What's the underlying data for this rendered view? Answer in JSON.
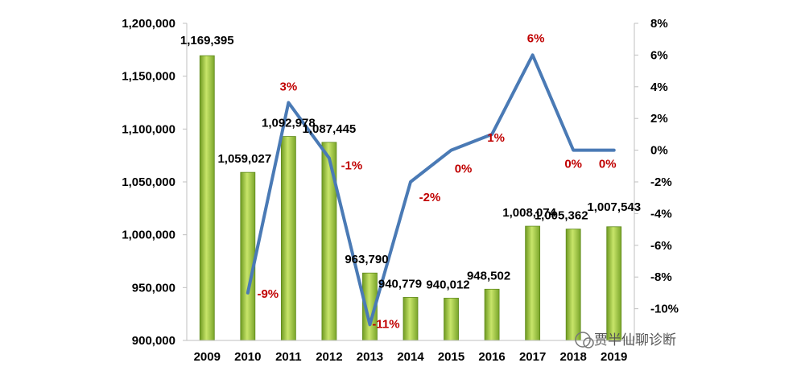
{
  "chart_data": {
    "type": "bar",
    "categories": [
      "2009",
      "2010",
      "2011",
      "2012",
      "2013",
      "2014",
      "2015",
      "2016",
      "2017",
      "2018",
      "2019"
    ],
    "series": [
      {
        "type": "bar",
        "axis": "left",
        "values": [
          1169395,
          1059027,
          1092978,
          1087445,
          963790,
          940779,
          940012,
          948502,
          1008074,
          1005362,
          1007543
        ],
        "labels": [
          "1,169,395",
          "1,059,027",
          "1,092,978",
          "1,087,445",
          "963,790",
          "940,779",
          "940,012",
          "948,502",
          "1,008,074",
          "1,005,362",
          "1,007,543"
        ],
        "color": "#8db83a"
      },
      {
        "type": "line",
        "axis": "right",
        "values": [
          null,
          -9,
          3,
          -0.5,
          -11,
          -2,
          0,
          1,
          6,
          0,
          0
        ],
        "labels": [
          null,
          "-9%",
          "3%",
          "-1%",
          "-11%",
          "-2%",
          "0%",
          "1%",
          "6%",
          "0%",
          "0%"
        ],
        "color": "#4a7ab5"
      }
    ],
    "y_left": {
      "ylim": [
        900000,
        1200000
      ],
      "ticks": [
        "900,000",
        "950,000",
        "1,000,000",
        "1,050,000",
        "1,100,000",
        "1,150,000",
        "1,200,000"
      ]
    },
    "y_right": {
      "ylim": [
        -12,
        8
      ],
      "ticks": [
        "-10%",
        "-8%",
        "-6%",
        "-4%",
        "-2%",
        "0%",
        "2%",
        "4%",
        "6%",
        "8%"
      ]
    },
    "title": "",
    "xlabel": "",
    "ylabel": "",
    "grid": false,
    "watermark": "贾半仙聊诊断",
    "label_color": "#c00000"
  }
}
